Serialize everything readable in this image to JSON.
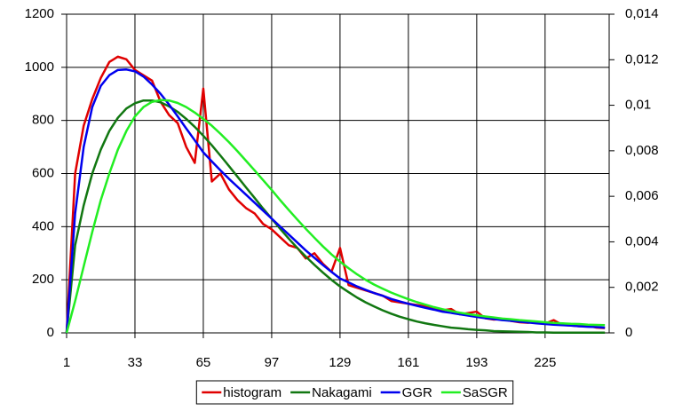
{
  "chart_data": {
    "type": "line",
    "x": [
      1,
      5,
      9,
      13,
      17,
      21,
      25,
      29,
      33,
      37,
      41,
      45,
      49,
      53,
      57,
      61,
      65,
      69,
      73,
      77,
      81,
      85,
      89,
      93,
      97,
      101,
      105,
      109,
      113,
      117,
      121,
      125,
      129,
      133,
      137,
      141,
      145,
      149,
      153,
      157,
      161,
      165,
      169,
      173,
      177,
      181,
      185,
      189,
      193,
      197,
      201,
      205,
      209,
      213,
      217,
      221,
      225,
      229,
      233,
      237,
      241,
      245,
      249,
      253
    ],
    "series": [
      {
        "name": "histogram",
        "color": "#e00000",
        "values": [
          0,
          600,
          780,
          880,
          960,
          1020,
          1040,
          1030,
          990,
          970,
          950,
          870,
          820,
          790,
          700,
          640,
          920,
          570,
          600,
          540,
          500,
          470,
          450,
          410,
          390,
          360,
          330,
          320,
          280,
          300,
          260,
          230,
          320,
          180,
          170,
          160,
          150,
          140,
          120,
          115,
          110,
          105,
          100,
          95,
          85,
          90,
          70,
          75,
          80,
          55,
          50,
          52,
          45,
          40,
          38,
          42,
          35,
          48,
          30,
          28,
          25,
          27,
          20,
          18
        ]
      },
      {
        "name": "Nakagami",
        "color": "#117711",
        "axis": "y2",
        "values": [
          0,
          0.00385,
          0.0056,
          0.007,
          0.00805,
          0.00887,
          0.00945,
          0.00986,
          0.01009,
          0.01021,
          0.01021,
          0.01013,
          0.00995,
          0.00971,
          0.0094,
          0.00905,
          0.00866,
          0.00824,
          0.00779,
          0.00733,
          0.00686,
          0.00639,
          0.00593,
          0.00546,
          0.00502,
          0.00457,
          0.00414,
          0.00373,
          0.00335,
          0.00299,
          0.00265,
          0.00233,
          0.00204,
          0.00179,
          0.00155,
          0.00134,
          0.00116,
          0.00099,
          0.00084,
          0.00071,
          0.0006,
          0.0005,
          0.00042,
          0.00035,
          0.00029,
          0.00023,
          0.0002,
          0.00016,
          0.00013,
          0.00011,
          8e-05,
          7e-05,
          6e-05,
          5e-05,
          4e-05,
          2e-05,
          2e-05,
          1e-05,
          1e-05,
          1e-05,
          1e-05,
          1e-05,
          1e-05,
          1e-05
        ]
      },
      {
        "name": "GGR",
        "color": "#0000ee",
        "axis": "y2",
        "values": [
          0,
          0.00525,
          0.00817,
          0.00992,
          0.01085,
          0.01132,
          0.01155,
          0.01157,
          0.01149,
          0.01126,
          0.01091,
          0.0105,
          0.01003,
          0.00951,
          0.00898,
          0.00846,
          0.00793,
          0.00753,
          0.00714,
          0.00677,
          0.00642,
          0.00607,
          0.00572,
          0.00537,
          0.00502,
          0.00467,
          0.00432,
          0.00397,
          0.00362,
          0.0033,
          0.00298,
          0.00268,
          0.00239,
          0.00222,
          0.00204,
          0.00189,
          0.00175,
          0.00163,
          0.00149,
          0.00138,
          0.00128,
          0.00119,
          0.0011,
          0.00102,
          0.00093,
          0.00088,
          0.00082,
          0.00076,
          0.0007,
          0.00065,
          0.00061,
          0.00056,
          0.00053,
          0.00049,
          0.00046,
          0.00042,
          0.00039,
          0.00036,
          0.00034,
          0.00032,
          0.00029,
          0.00027,
          0.00026,
          0.00023
        ]
      },
      {
        "name": "SaSGR",
        "color": "#22ee22",
        "axis": "y2",
        "values": [
          0,
          0.0014,
          0.00292,
          0.00443,
          0.00583,
          0.007,
          0.00805,
          0.00887,
          0.00951,
          0.00992,
          0.01015,
          0.01023,
          0.01021,
          0.0101,
          0.00992,
          0.00968,
          0.0094,
          0.0091,
          0.00875,
          0.00838,
          0.00798,
          0.00756,
          0.00714,
          0.00671,
          0.00628,
          0.00583,
          0.0054,
          0.00498,
          0.00457,
          0.00418,
          0.0038,
          0.00345,
          0.00313,
          0.00284,
          0.00257,
          0.00233,
          0.00212,
          0.00194,
          0.00177,
          0.00162,
          0.00148,
          0.00135,
          0.00124,
          0.00113,
          0.00104,
          0.00096,
          0.00089,
          0.00083,
          0.00077,
          0.00072,
          0.00068,
          0.00063,
          0.0006,
          0.00056,
          0.00053,
          0.0005,
          0.00047,
          0.00044,
          0.00042,
          0.0004,
          0.00039,
          0.00036,
          0.00035,
          0.00034
        ]
      }
    ],
    "xlim": [
      1,
      255
    ],
    "xticks": [
      1,
      33,
      65,
      97,
      129,
      161,
      193,
      225
    ],
    "ylim": [
      0,
      1200
    ],
    "yticks": [
      0,
      200,
      400,
      600,
      800,
      1000,
      1200
    ],
    "y2lim": [
      0,
      0.014
    ],
    "y2ticks": [
      0,
      {
        "value": 0.002,
        "label": "0,002"
      },
      {
        "value": 0.004,
        "label": "0,004"
      },
      {
        "value": 0.006,
        "label": "0,006"
      },
      {
        "value": 0.008,
        "label": "0,008"
      },
      {
        "value": 0.01,
        "label": "0,01"
      },
      {
        "value": 0.012,
        "label": "0,012"
      },
      {
        "value": 0.014,
        "label": "0,014"
      }
    ],
    "grid": true,
    "legend": "bottom"
  }
}
